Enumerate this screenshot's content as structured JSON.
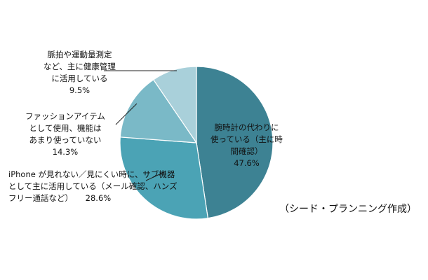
{
  "chart_data": {
    "type": "pie",
    "slices": [
      {
        "label_lines": [
          "腕時計の代わりに",
          "使っている（主に時",
          "間確認）"
        ],
        "value": 47.6,
        "value_text": "47.6%",
        "color": "#3d8293"
      },
      {
        "label_lines": [
          "iPhone が見れない／見にくい時に、サブ機器",
          "として主に活用している（メール確認、ハンズ"
        ],
        "label_last": "フリー通話など）",
        "value": 28.6,
        "value_text": "28.6%",
        "color": "#4ba3b5"
      },
      {
        "label_lines": [
          "ファッションアイテム",
          "として使用、機能は",
          "あまり使っていない"
        ],
        "value": 14.3,
        "value_text": "14.3%",
        "color": "#7ab9c7"
      },
      {
        "label_lines": [
          "脈拍や運動量測定",
          "など、主に健康管理",
          "に活用している"
        ],
        "value": 9.5,
        "value_text": "9.5%",
        "color": "#a9d0da"
      }
    ],
    "start": "12 o'clock",
    "direction": "clockwise",
    "legend": "none",
    "source_note": "（シード・プランニング作成）"
  }
}
